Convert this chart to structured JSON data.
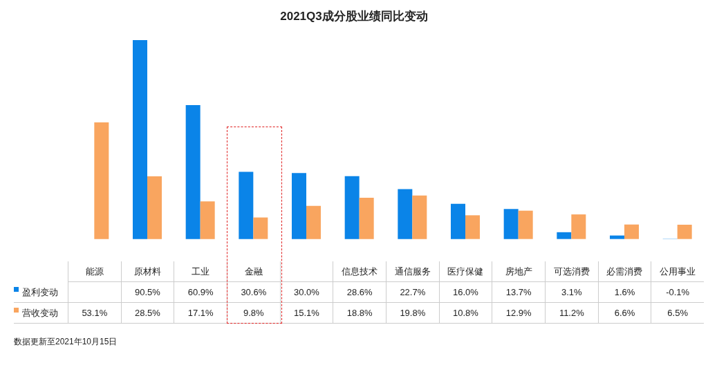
{
  "chart_data": {
    "type": "bar",
    "title": "2021Q3成分股业绩同比变动",
    "categories": [
      "能源",
      "原材料",
      "工业",
      "金融",
      null,
      "信息技术",
      "通信服务",
      "医疗保健",
      "房地产",
      "可选消费",
      "必需消费",
      "公用事业"
    ],
    "series": [
      {
        "name": "盈利变动",
        "color": "#0a84e8",
        "values": [
          null,
          90.5,
          60.9,
          30.6,
          30.0,
          28.6,
          22.7,
          16.0,
          13.7,
          3.1,
          1.6,
          -0.1
        ],
        "value_labels": [
          null,
          "90.5%",
          "60.9%",
          "30.6%",
          "30.0%",
          "28.6%",
          "22.7%",
          "16.0%",
          "13.7%",
          "3.1%",
          "1.6%",
          "-0.1%"
        ]
      },
      {
        "name": "营收变动",
        "color": "#f9a55f",
        "values": [
          53.1,
          28.5,
          17.1,
          9.8,
          15.1,
          18.8,
          19.8,
          10.8,
          12.9,
          11.2,
          6.6,
          6.5
        ],
        "value_labels": [
          "53.1%",
          "28.5%",
          "17.1%",
          "9.8%",
          "15.1%",
          "18.8%",
          "19.8%",
          "10.8%",
          "12.9%",
          "11.2%",
          "6.6%",
          "6.5%"
        ]
      }
    ],
    "legend": "bottom left",
    "grid": false,
    "annotations": [
      "数据更新至2021年10月15日"
    ]
  }
}
